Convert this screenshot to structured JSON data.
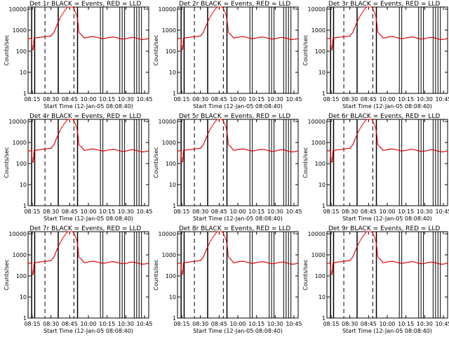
{
  "chart_data": [
    {
      "type": "line",
      "title": "Det  1r BLACK = Events, RED = LLD",
      "xlabel": "Start Time (12-Jan-05 08:08:40)",
      "ylabel": "Counts/sec",
      "xticks": [
        "08:15",
        "08:30",
        "08:45",
        "10:00",
        "10:15",
        "10:30",
        "10:45"
      ],
      "yticks": [
        "10000",
        "1000",
        "100",
        "10",
        "1"
      ],
      "series": [
        {
          "color": "#000000"
        },
        {
          "color": "#ff0000"
        }
      ]
    },
    {
      "type": "line",
      "title": "Det  2r BLACK = Events, RED = LLD",
      "xlabel": "Start Time (12-Jan-05 08:08:40)",
      "ylabel": "Counts/sec",
      "xticks": [
        "08:15",
        "08:30",
        "08:45",
        "10:00",
        "10:15",
        "10:30",
        "10:45"
      ],
      "yticks": [
        "10000",
        "1000",
        "100",
        "10",
        "1"
      ],
      "series": [
        {
          "color": "#000000"
        },
        {
          "color": "#ff0000"
        }
      ]
    },
    {
      "type": "line",
      "title": "Det  3r BLACK = Events, RED = LLD",
      "xlabel": "Start Time (12-Jan-05 08:08:40)",
      "ylabel": "Counts/sec",
      "xticks": [
        "08:15",
        "08:30",
        "08:45",
        "10:00",
        "10:15",
        "10:30",
        "10:45"
      ],
      "yticks": [
        "10000",
        "1000",
        "100",
        "10",
        "1"
      ],
      "series": [
        {
          "color": "#000000"
        },
        {
          "color": "#ff0000"
        }
      ]
    },
    {
      "type": "line",
      "title": "Det  4r BLACK = Events, RED = LLD",
      "xlabel": "Start Time (12-Jan-05 08:08:40)",
      "ylabel": "Counts/sec",
      "xticks": [
        "08:15",
        "08:30",
        "08:45",
        "10:00",
        "10:15",
        "10:30",
        "10:45"
      ],
      "yticks": [
        "10000",
        "1000",
        "100",
        "10",
        "1"
      ],
      "series": [
        {
          "color": "#000000"
        },
        {
          "color": "#ff0000"
        }
      ]
    },
    {
      "type": "line",
      "title": "Det  5r BLACK = Events, RED = LLD",
      "xlabel": "Start Time (12-Jan-05 08:08:40)",
      "ylabel": "Counts/sec",
      "xticks": [
        "08:15",
        "08:30",
        "08:45",
        "10:00",
        "10:15",
        "10:30",
        "10:45"
      ],
      "yticks": [
        "10000",
        "1000",
        "100",
        "10",
        "1"
      ],
      "series": [
        {
          "color": "#000000"
        },
        {
          "color": "#ff0000"
        }
      ]
    },
    {
      "type": "line",
      "title": "Det  6r BLACK = Events, RED = LLD",
      "xlabel": "Start Time (12-Jan-05 08:08:40)",
      "ylabel": "Counts/sec",
      "xticks": [
        "08:15",
        "08:30",
        "08:45",
        "10:00",
        "10:15",
        "10:30",
        "10:45"
      ],
      "yticks": [
        "10000",
        "1000",
        "100",
        "10",
        "1"
      ],
      "series": [
        {
          "color": "#000000"
        },
        {
          "color": "#ff0000"
        }
      ]
    },
    {
      "type": "line",
      "title": "Det  7r BLACK = Events, RED = LLD",
      "xlabel": "Start Time (12-Jan-05 08:08:40)",
      "ylabel": "Counts/sec",
      "xticks": [
        "08:15",
        "08:30",
        "08:45",
        "10:00",
        "10:15",
        "10:30",
        "10:45"
      ],
      "yticks": [
        "10000",
        "1000",
        "100",
        "10",
        "1"
      ],
      "series": [
        {
          "color": "#000000"
        },
        {
          "color": "#ff0000"
        }
      ]
    },
    {
      "type": "line",
      "title": "Det  8r BLACK = Events, RED = LLD",
      "xlabel": "Start Time (12-Jan-05 08:08:40)",
      "ylabel": "Counts/sec",
      "xticks": [
        "08:15",
        "08:30",
        "08:45",
        "10:00",
        "10:15",
        "10:30",
        "10:45"
      ],
      "yticks": [
        "10000",
        "1000",
        "100",
        "10",
        "1"
      ],
      "series": [
        {
          "color": "#000000"
        },
        {
          "color": "#ff0000"
        }
      ]
    },
    {
      "type": "line",
      "title": "Det  9r BLACK = Events, RED = LLD",
      "xlabel": "Start Time (12-Jan-05 08:08:40)",
      "ylabel": "Counts/sec",
      "xticks": [
        "08:15",
        "08:30",
        "08:45",
        "10:00",
        "10:15",
        "10:30",
        "10:45"
      ],
      "yticks": [
        "10000",
        "1000",
        "100",
        "10",
        "1"
      ],
      "series": [
        {
          "color": "#000000"
        },
        {
          "color": "#ff0000"
        }
      ]
    }
  ]
}
